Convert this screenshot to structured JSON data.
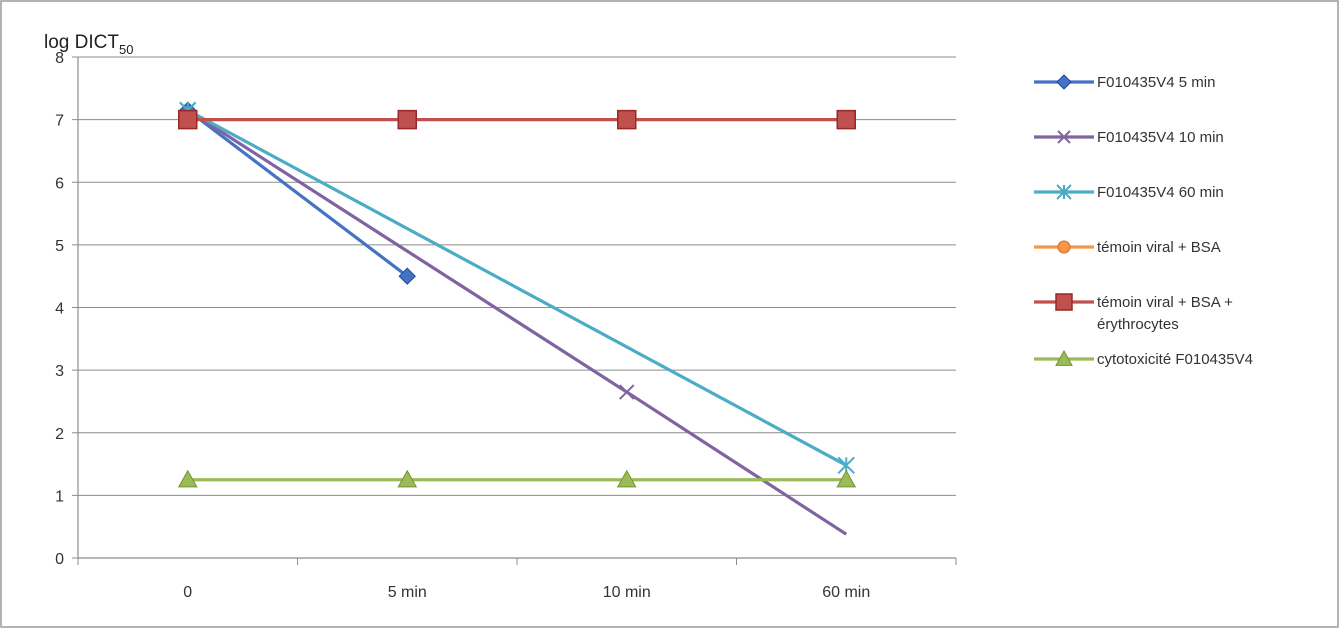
{
  "chart_data": {
    "type": "line",
    "title": "",
    "xlabel": "",
    "ylabel": "log DICT",
    "ylabel_subscript": "50",
    "categories": [
      "0",
      "5 min",
      "10 min",
      "60 min"
    ],
    "ylim": [
      0,
      8
    ],
    "yticks": [
      0,
      1,
      2,
      3,
      4,
      5,
      6,
      7,
      8
    ],
    "grid": true,
    "legend_position": "right",
    "series": [
      {
        "name": "F010435V4 5 min",
        "values": [
          7.15,
          4.5,
          null,
          null
        ],
        "color": "#4472c4",
        "marker": "diamond"
      },
      {
        "name": "F010435V4 10 min",
        "values": [
          7.15,
          null,
          2.65,
          0.38
        ],
        "color": "#8064a2",
        "marker": "plus"
      },
      {
        "name": "F010435V4 60 min",
        "values": [
          7.15,
          null,
          null,
          1.48
        ],
        "color": "#4bacc6",
        "marker": "star"
      },
      {
        "name": "témoin viral + BSA",
        "values": [
          7.0,
          7.0,
          7.0,
          7.0
        ],
        "color": "#f79646",
        "marker": "circle",
        "legend_only": true
      },
      {
        "name": "témoin viral + BSA +",
        "name_line2": "érythrocytes",
        "values": [
          7.0,
          7.0,
          7.0,
          7.0
        ],
        "color": "#c0504d",
        "marker": "square"
      },
      {
        "name": "cytotoxicité F010435V4",
        "values": [
          1.25,
          1.25,
          1.25,
          1.25
        ],
        "color": "#9bbb59",
        "marker": "triangle"
      }
    ]
  }
}
